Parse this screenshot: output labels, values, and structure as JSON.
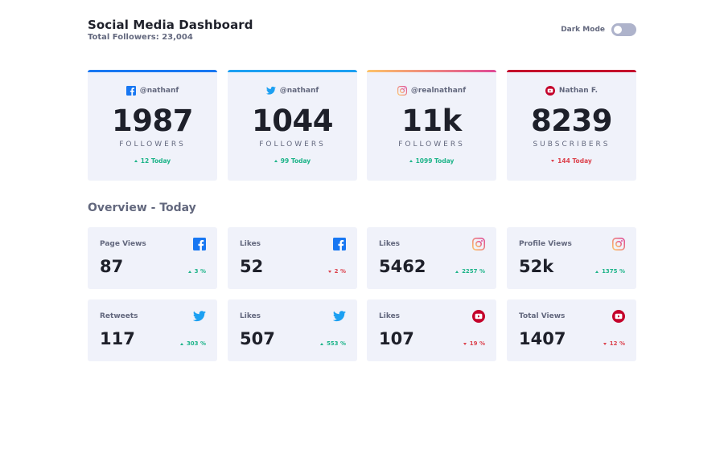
{
  "header": {
    "title": "Social Media Dashboard",
    "total_followers": "Total Followers: 23,004",
    "dark_mode_label": "Dark Mode",
    "dark_mode_on": false
  },
  "colors": {
    "facebook": "#1877f2",
    "twitter": "#1ca0f2",
    "instagram_start": "#fdc468",
    "instagram_end": "#df4996",
    "youtube": "#c4032b",
    "up": "#1db489",
    "down": "#dc414c"
  },
  "platform_cards": [
    {
      "platform": "facebook",
      "icon": "facebook-icon",
      "handle": "@nathanf",
      "count": "1987",
      "unit": "FOLLOWERS",
      "today": "12 Today",
      "trend": "up"
    },
    {
      "platform": "twitter",
      "icon": "twitter-icon",
      "handle": "@nathanf",
      "count": "1044",
      "unit": "FOLLOWERS",
      "today": "99 Today",
      "trend": "up"
    },
    {
      "platform": "instagram",
      "icon": "instagram-icon",
      "handle": "@realnathanf",
      "count": "11k",
      "unit": "FOLLOWERS",
      "today": "1099 Today",
      "trend": "up"
    },
    {
      "platform": "youtube",
      "icon": "youtube-icon",
      "handle": "Nathan F.",
      "count": "8239",
      "unit": "SUBSCRIBERS",
      "today": "144 Today",
      "trend": "down"
    }
  ],
  "overview": {
    "title": "Overview - Today",
    "rows": [
      [
        {
          "label": "Page Views",
          "icon": "facebook-icon",
          "value": "87",
          "change": "3 %",
          "trend": "up"
        },
        {
          "label": "Likes",
          "icon": "facebook-icon",
          "value": "52",
          "change": "2 %",
          "trend": "down"
        },
        {
          "label": "Likes",
          "icon": "instagram-icon",
          "value": "5462",
          "change": "2257 %",
          "trend": "up"
        },
        {
          "label": "Profile Views",
          "icon": "instagram-icon",
          "value": "52k",
          "change": "1375 %",
          "trend": "up"
        }
      ],
      [
        {
          "label": "Retweets",
          "icon": "twitter-icon",
          "value": "117",
          "change": "303 %",
          "trend": "up"
        },
        {
          "label": "Likes",
          "icon": "twitter-icon",
          "value": "507",
          "change": "553 %",
          "trend": "up"
        },
        {
          "label": "Likes",
          "icon": "youtube-icon",
          "value": "107",
          "change": "19 %",
          "trend": "down"
        },
        {
          "label": "Total Views",
          "icon": "youtube-icon",
          "value": "1407",
          "change": "12 %",
          "trend": "down"
        }
      ]
    ]
  }
}
